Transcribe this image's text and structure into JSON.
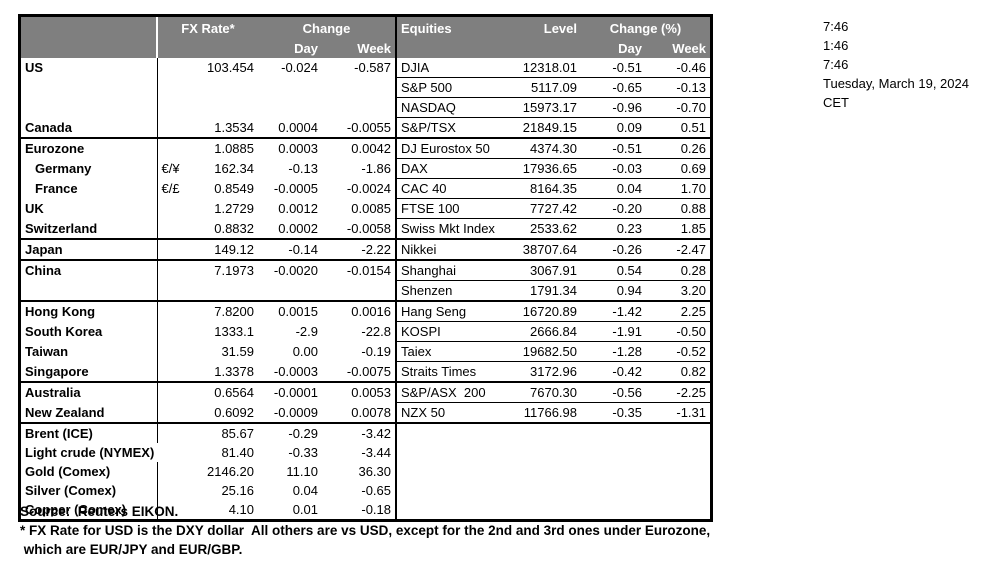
{
  "header": {
    "fx_rate": "FX Rate*",
    "fx_change": "Change",
    "equities": "Equities",
    "level": "Level",
    "eq_change": "Change (%)",
    "day": "Day",
    "week": "Week"
  },
  "rows": [
    {
      "region": "US",
      "pair": "",
      "fx": "103.454",
      "fx_day": "-0.024",
      "fx_week": "-0.587",
      "equity": "DJIA",
      "level": "12318.01",
      "eq_day": "-0.51",
      "eq_week": "-0.46"
    },
    {
      "region": "",
      "pair": "",
      "fx": "",
      "fx_day": "",
      "fx_week": "",
      "equity": "S&P 500",
      "level": "5117.09",
      "eq_day": "-0.65",
      "eq_week": "-0.13"
    },
    {
      "region": "",
      "pair": "",
      "fx": "",
      "fx_day": "",
      "fx_week": "",
      "equity": "NASDAQ",
      "level": "15973.17",
      "eq_day": "-0.96",
      "eq_week": "-0.70"
    },
    {
      "region": "Canada",
      "pair": "",
      "fx": "1.3534",
      "fx_day": "0.0004",
      "fx_week": "-0.0055",
      "equity": "S&P/TSX",
      "level": "21849.15",
      "eq_day": "0.09",
      "eq_week": "0.51",
      "group_end": true
    },
    {
      "region": "Eurozone",
      "pair": "",
      "fx": "1.0885",
      "fx_day": "0.0003",
      "fx_week": "0.0042",
      "equity": "DJ Eurostox 50",
      "level": "4374.30",
      "eq_day": "-0.51",
      "eq_week": "0.26"
    },
    {
      "region": "Germany",
      "pair": "€/¥",
      "fx": "162.34",
      "fx_day": "-0.13",
      "fx_week": "-1.86",
      "equity": "DAX",
      "level": "17936.65",
      "eq_day": "-0.03",
      "eq_week": "0.69",
      "indent": true
    },
    {
      "region": "France",
      "pair": "€/£",
      "fx": "0.8549",
      "fx_day": "-0.0005",
      "fx_week": "-0.0024",
      "equity": "CAC 40",
      "level": "8164.35",
      "eq_day": "0.04",
      "eq_week": "1.70",
      "indent": true
    },
    {
      "region": "UK",
      "pair": "",
      "fx": "1.2729",
      "fx_day": "0.0012",
      "fx_week": "0.0085",
      "equity": "FTSE 100",
      "level": "7727.42",
      "eq_day": "-0.20",
      "eq_week": "0.88"
    },
    {
      "region": "Switzerland",
      "pair": "",
      "fx": "0.8832",
      "fx_day": "0.0002",
      "fx_week": "-0.0058",
      "equity": "Swiss Mkt Index",
      "level": "2533.62",
      "eq_day": "0.23",
      "eq_week": "1.85",
      "group_end": true
    },
    {
      "region": "Japan",
      "pair": "",
      "fx": "149.12",
      "fx_day": "-0.14",
      "fx_week": "-2.22",
      "equity": "Nikkei",
      "level": "38707.64",
      "eq_day": "-0.26",
      "eq_week": "-2.47",
      "group_end": true
    },
    {
      "region": "China",
      "pair": "",
      "fx": "7.1973",
      "fx_day": "-0.0020",
      "fx_week": "-0.0154",
      "equity": "Shanghai",
      "level": "3067.91",
      "eq_day": "0.54",
      "eq_week": "0.28"
    },
    {
      "region": "",
      "pair": "",
      "fx": "",
      "fx_day": "",
      "fx_week": "",
      "equity": "Shenzen",
      "level": "1791.34",
      "eq_day": "0.94",
      "eq_week": "3.20",
      "group_end": true
    },
    {
      "region": "Hong Kong",
      "pair": "",
      "fx": "7.8200",
      "fx_day": "0.0015",
      "fx_week": "0.0016",
      "equity": "Hang Seng",
      "level": "16720.89",
      "eq_day": "-1.42",
      "eq_week": "2.25"
    },
    {
      "region": "South Korea",
      "pair": "",
      "fx": "1333.1",
      "fx_day": "-2.9",
      "fx_week": "-22.8",
      "equity": "KOSPI",
      "level": "2666.84",
      "eq_day": "-1.91",
      "eq_week": "-0.50"
    },
    {
      "region": "Taiwan",
      "pair": "",
      "fx": "31.59",
      "fx_day": "0.00",
      "fx_week": "-0.19",
      "equity": "Taiex",
      "level": "19682.50",
      "eq_day": "-1.28",
      "eq_week": "-0.52"
    },
    {
      "region": "Singapore",
      "pair": "",
      "fx": "1.3378",
      "fx_day": "-0.0003",
      "fx_week": "-0.0075",
      "equity": "Straits Times",
      "level": "3172.96",
      "eq_day": "-0.42",
      "eq_week": "0.82",
      "group_end": true
    },
    {
      "region": "Australia",
      "pair": "",
      "fx": "0.6564",
      "fx_day": "-0.0001",
      "fx_week": "0.0053",
      "equity": "S&P/ASX  200",
      "level": "7670.30",
      "eq_day": "-0.56",
      "eq_week": "-2.25"
    },
    {
      "region": "New Zealand",
      "pair": "",
      "fx": "0.6092",
      "fx_day": "-0.0009",
      "fx_week": "0.0078",
      "equity": "NZX 50",
      "level": "11766.98",
      "eq_day": "-0.35",
      "eq_week": "-1.31",
      "group_end": true
    },
    {
      "region": "Brent (ICE)",
      "pair": "",
      "fx": "85.67",
      "fx_day": "-0.29",
      "fx_week": "-3.42",
      "equity": "",
      "level": "",
      "eq_day": "",
      "eq_week": "",
      "no_eq": true
    },
    {
      "region": "Light crude (NYMEX)",
      "pair": "",
      "fx": "81.40",
      "fx_day": "-0.33",
      "fx_week": "-3.44",
      "equity": "",
      "level": "",
      "eq_day": "",
      "eq_week": "",
      "no_eq": true,
      "no_divider": true
    },
    {
      "region": "Gold (Comex)",
      "pair": "",
      "fx": "2146.20",
      "fx_day": "11.10",
      "fx_week": "36.30",
      "equity": "",
      "level": "",
      "eq_day": "",
      "eq_week": "",
      "no_eq": true
    },
    {
      "region": "Silver (Comex)",
      "pair": "",
      "fx": "25.16",
      "fx_day": "0.04",
      "fx_week": "-0.65",
      "equity": "",
      "level": "",
      "eq_day": "",
      "eq_week": "",
      "no_eq": true
    },
    {
      "region": "Copper (Comex)",
      "pair": "",
      "fx": "4.10",
      "fx_day": "0.01",
      "fx_week": "-0.18",
      "equity": "",
      "level": "",
      "eq_day": "",
      "eq_week": "",
      "no_eq": true
    }
  ],
  "info_lines": [
    "7:46",
    "1:46",
    "7:46",
    "Tuesday, March 19, 2024",
    "CET"
  ],
  "footnotes": [
    "Source:  Reuters EIKON.",
    "* FX Rate for USD is the DXY dollar  All others are vs USD, except for the 2nd and 3rd ones under Eurozone,",
    " which are EUR/JPY and EUR/GBP."
  ],
  "colors": {
    "header_bg": "#7f7f7f",
    "header_text": "#ffffff",
    "grid": "#000000"
  }
}
